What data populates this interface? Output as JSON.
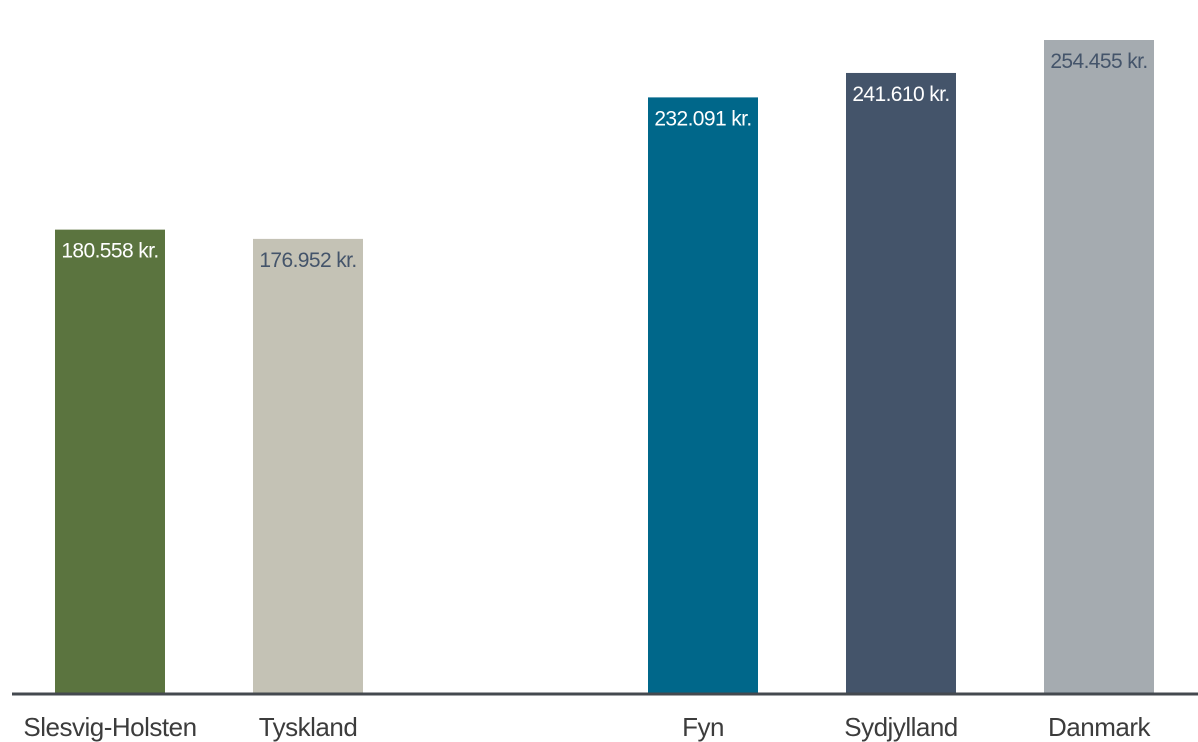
{
  "chart_data": {
    "type": "bar",
    "title": "",
    "xlabel": "",
    "ylabel": "",
    "ylim": [
      0,
      254455
    ],
    "grid": false,
    "legend": "none",
    "categories": [
      "Slesvig-Holsten",
      "Tyskland",
      "Fyn",
      "Sydjylland",
      "Danmark"
    ],
    "values": [
      180558,
      176952,
      232091,
      241610,
      254455
    ],
    "value_labels": [
      "180.558 kr.",
      "176.952 kr.",
      "232.091 kr.",
      "241.610 kr.",
      "254.455 kr."
    ],
    "colors": [
      "#5b743f",
      "#c4c2b5",
      "#00678a",
      "#44546a",
      "#a5abb0"
    ],
    "label_colors": [
      "#ffffff",
      "#44546a",
      "#ffffff",
      "#ffffff",
      "#44546a"
    ],
    "axis_color": "#44494f"
  }
}
